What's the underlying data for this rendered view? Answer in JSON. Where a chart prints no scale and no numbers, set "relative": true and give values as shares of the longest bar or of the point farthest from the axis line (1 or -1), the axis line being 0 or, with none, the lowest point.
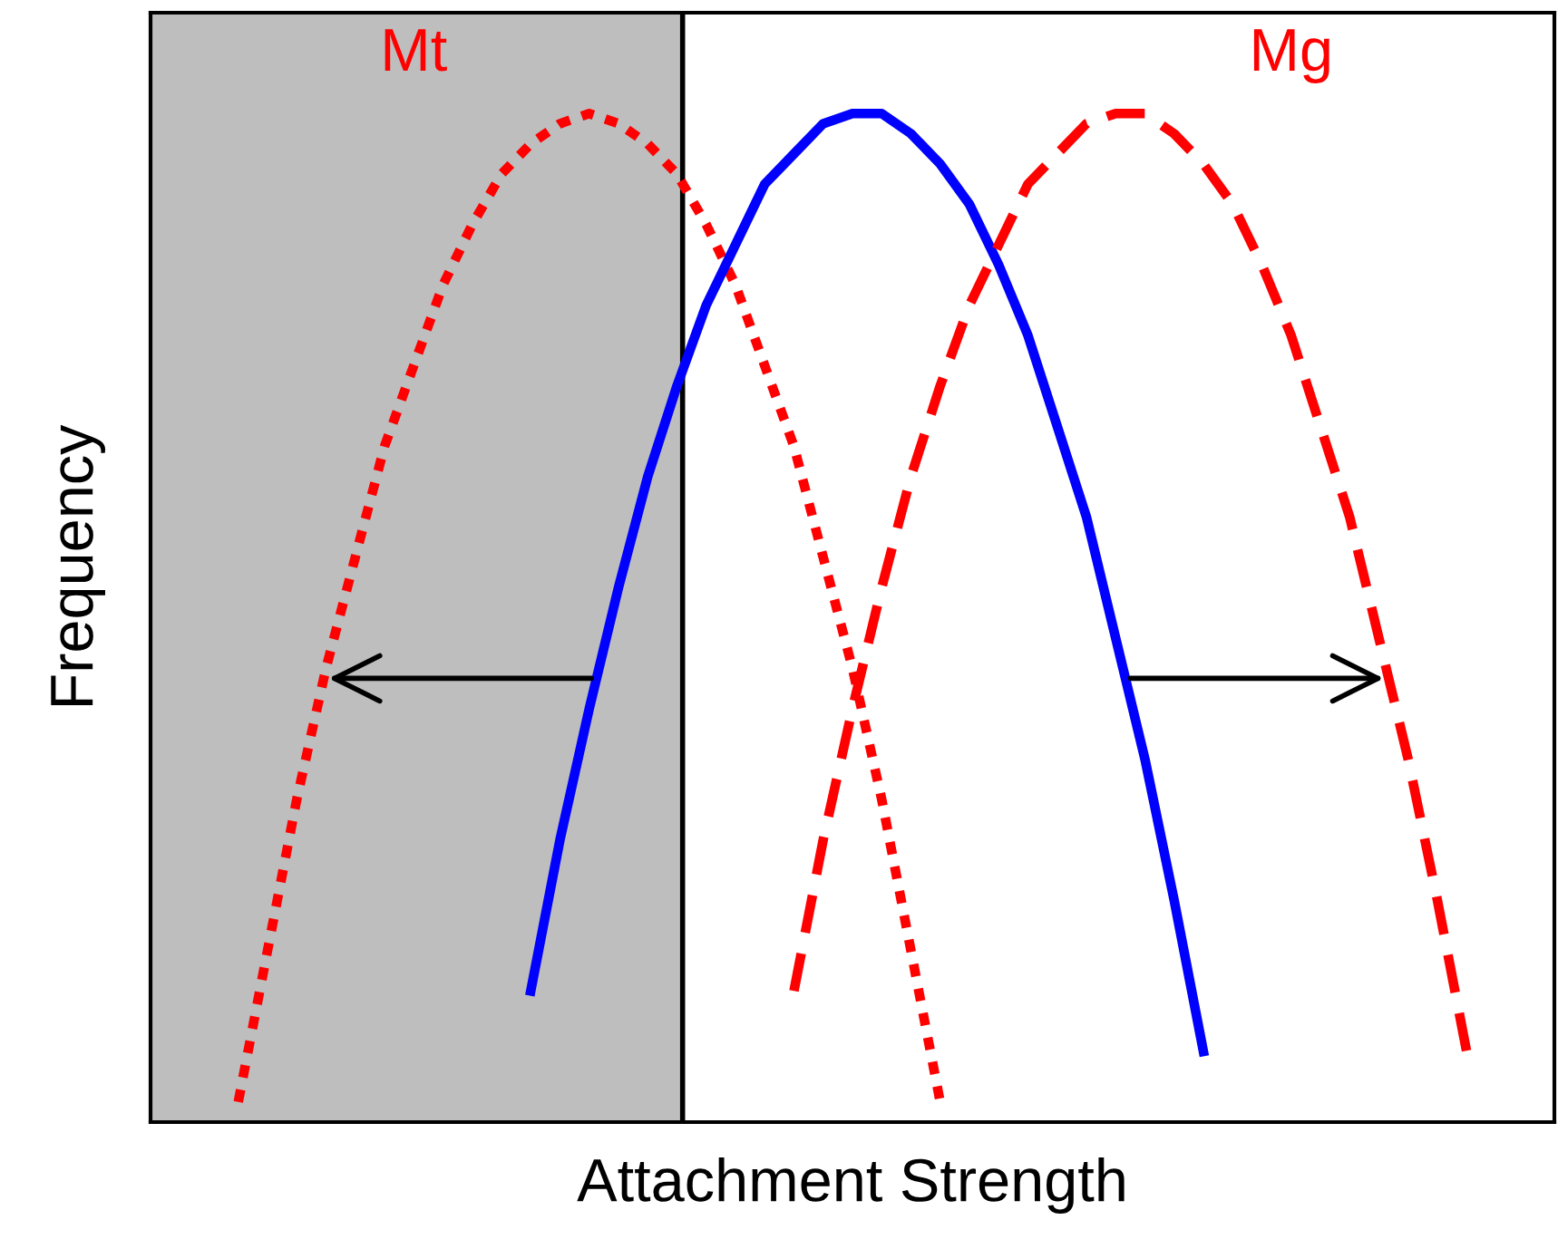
{
  "chart_data": {
    "type": "line",
    "relative": true,
    "xlabel": "Attachment Strength",
    "ylabel": "Frequency",
    "categories": [
      null,
      null,
      null,
      null,
      null,
      null,
      null,
      null,
      null,
      null,
      null,
      null,
      null,
      null,
      null,
      null,
      null,
      null,
      null,
      null,
      null,
      null,
      null,
      null,
      null,
      null,
      null,
      null,
      null,
      null,
      null,
      null,
      null,
      null,
      null,
      null,
      null,
      null,
      null,
      null,
      null,
      null,
      null,
      null,
      null,
      null,
      null,
      null,
      null
    ],
    "series": [
      {
        "name": "Mt",
        "color": "#ff0000",
        "line_style": "dotted",
        "values": [
          null,
          null,
          null,
          0.02,
          0.17,
          0.32,
          0.45,
          0.56,
          0.67,
          0.75,
          0.83,
          0.89,
          0.94,
          0.97,
          0.99,
          1.0,
          0.99,
          0.97,
          0.94,
          0.89,
          0.83,
          0.75,
          0.67,
          0.56,
          0.45,
          0.32,
          0.17,
          0.02,
          null,
          null,
          null,
          null,
          null,
          null,
          null,
          null,
          null,
          null,
          null,
          null,
          null,
          null,
          null,
          null,
          null,
          null,
          null,
          null,
          null
        ]
      },
      {
        "color": "#0000ff",
        "line_style": "solid",
        "values": [
          null,
          null,
          null,
          null,
          null,
          null,
          null,
          null,
          null,
          null,
          null,
          null,
          null,
          0.13,
          0.28,
          0.41,
          0.53,
          0.64,
          0.73,
          0.81,
          0.87,
          0.93,
          0.96,
          0.99,
          1.0,
          1.0,
          0.98,
          0.95,
          0.91,
          0.85,
          0.78,
          0.69,
          0.6,
          0.48,
          0.36,
          0.22,
          0.07,
          null,
          null,
          null,
          null,
          null,
          null,
          null,
          null,
          null,
          null,
          null,
          null
        ]
      },
      {
        "name": "Mg",
        "color": "#ff0000",
        "line_style": "dashed",
        "values": [
          null,
          null,
          null,
          null,
          null,
          null,
          null,
          null,
          null,
          null,
          null,
          null,
          null,
          null,
          null,
          null,
          null,
          null,
          null,
          null,
          null,
          null,
          0.13,
          0.28,
          0.41,
          0.53,
          0.64,
          0.73,
          0.81,
          0.87,
          0.93,
          0.96,
          0.99,
          1.0,
          1.0,
          0.98,
          0.95,
          0.91,
          0.85,
          0.78,
          0.69,
          0.6,
          0.48,
          0.36,
          0.22,
          0.07,
          null,
          null,
          null
        ]
      }
    ]
  }
}
